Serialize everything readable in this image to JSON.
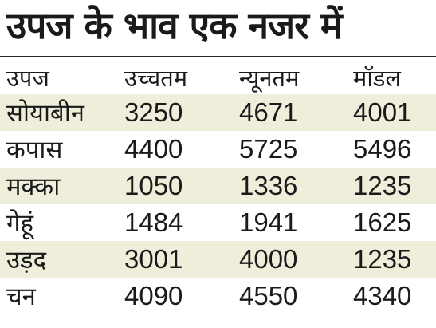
{
  "title": "उपज के भाव एक नजर में",
  "table": {
    "headers": [
      "उपज",
      "उच्चतम",
      "न्यूनतम",
      "मॉडल"
    ],
    "rows": [
      [
        "सोयाबीन",
        "3250",
        "4671",
        "4001"
      ],
      [
        "कपास",
        "4400",
        "5725",
        "5496"
      ],
      [
        "मक्का",
        "1050",
        "1336",
        "1235"
      ],
      [
        "गेहूं",
        "1484",
        "1941",
        "1625"
      ],
      [
        "उड़द",
        "3001",
        "4000",
        "1235"
      ],
      [
        "चन",
        "4090",
        "4550",
        "4340"
      ]
    ]
  },
  "colors": {
    "row_shade": "#eeeeda",
    "text": "#1a1a1a"
  }
}
